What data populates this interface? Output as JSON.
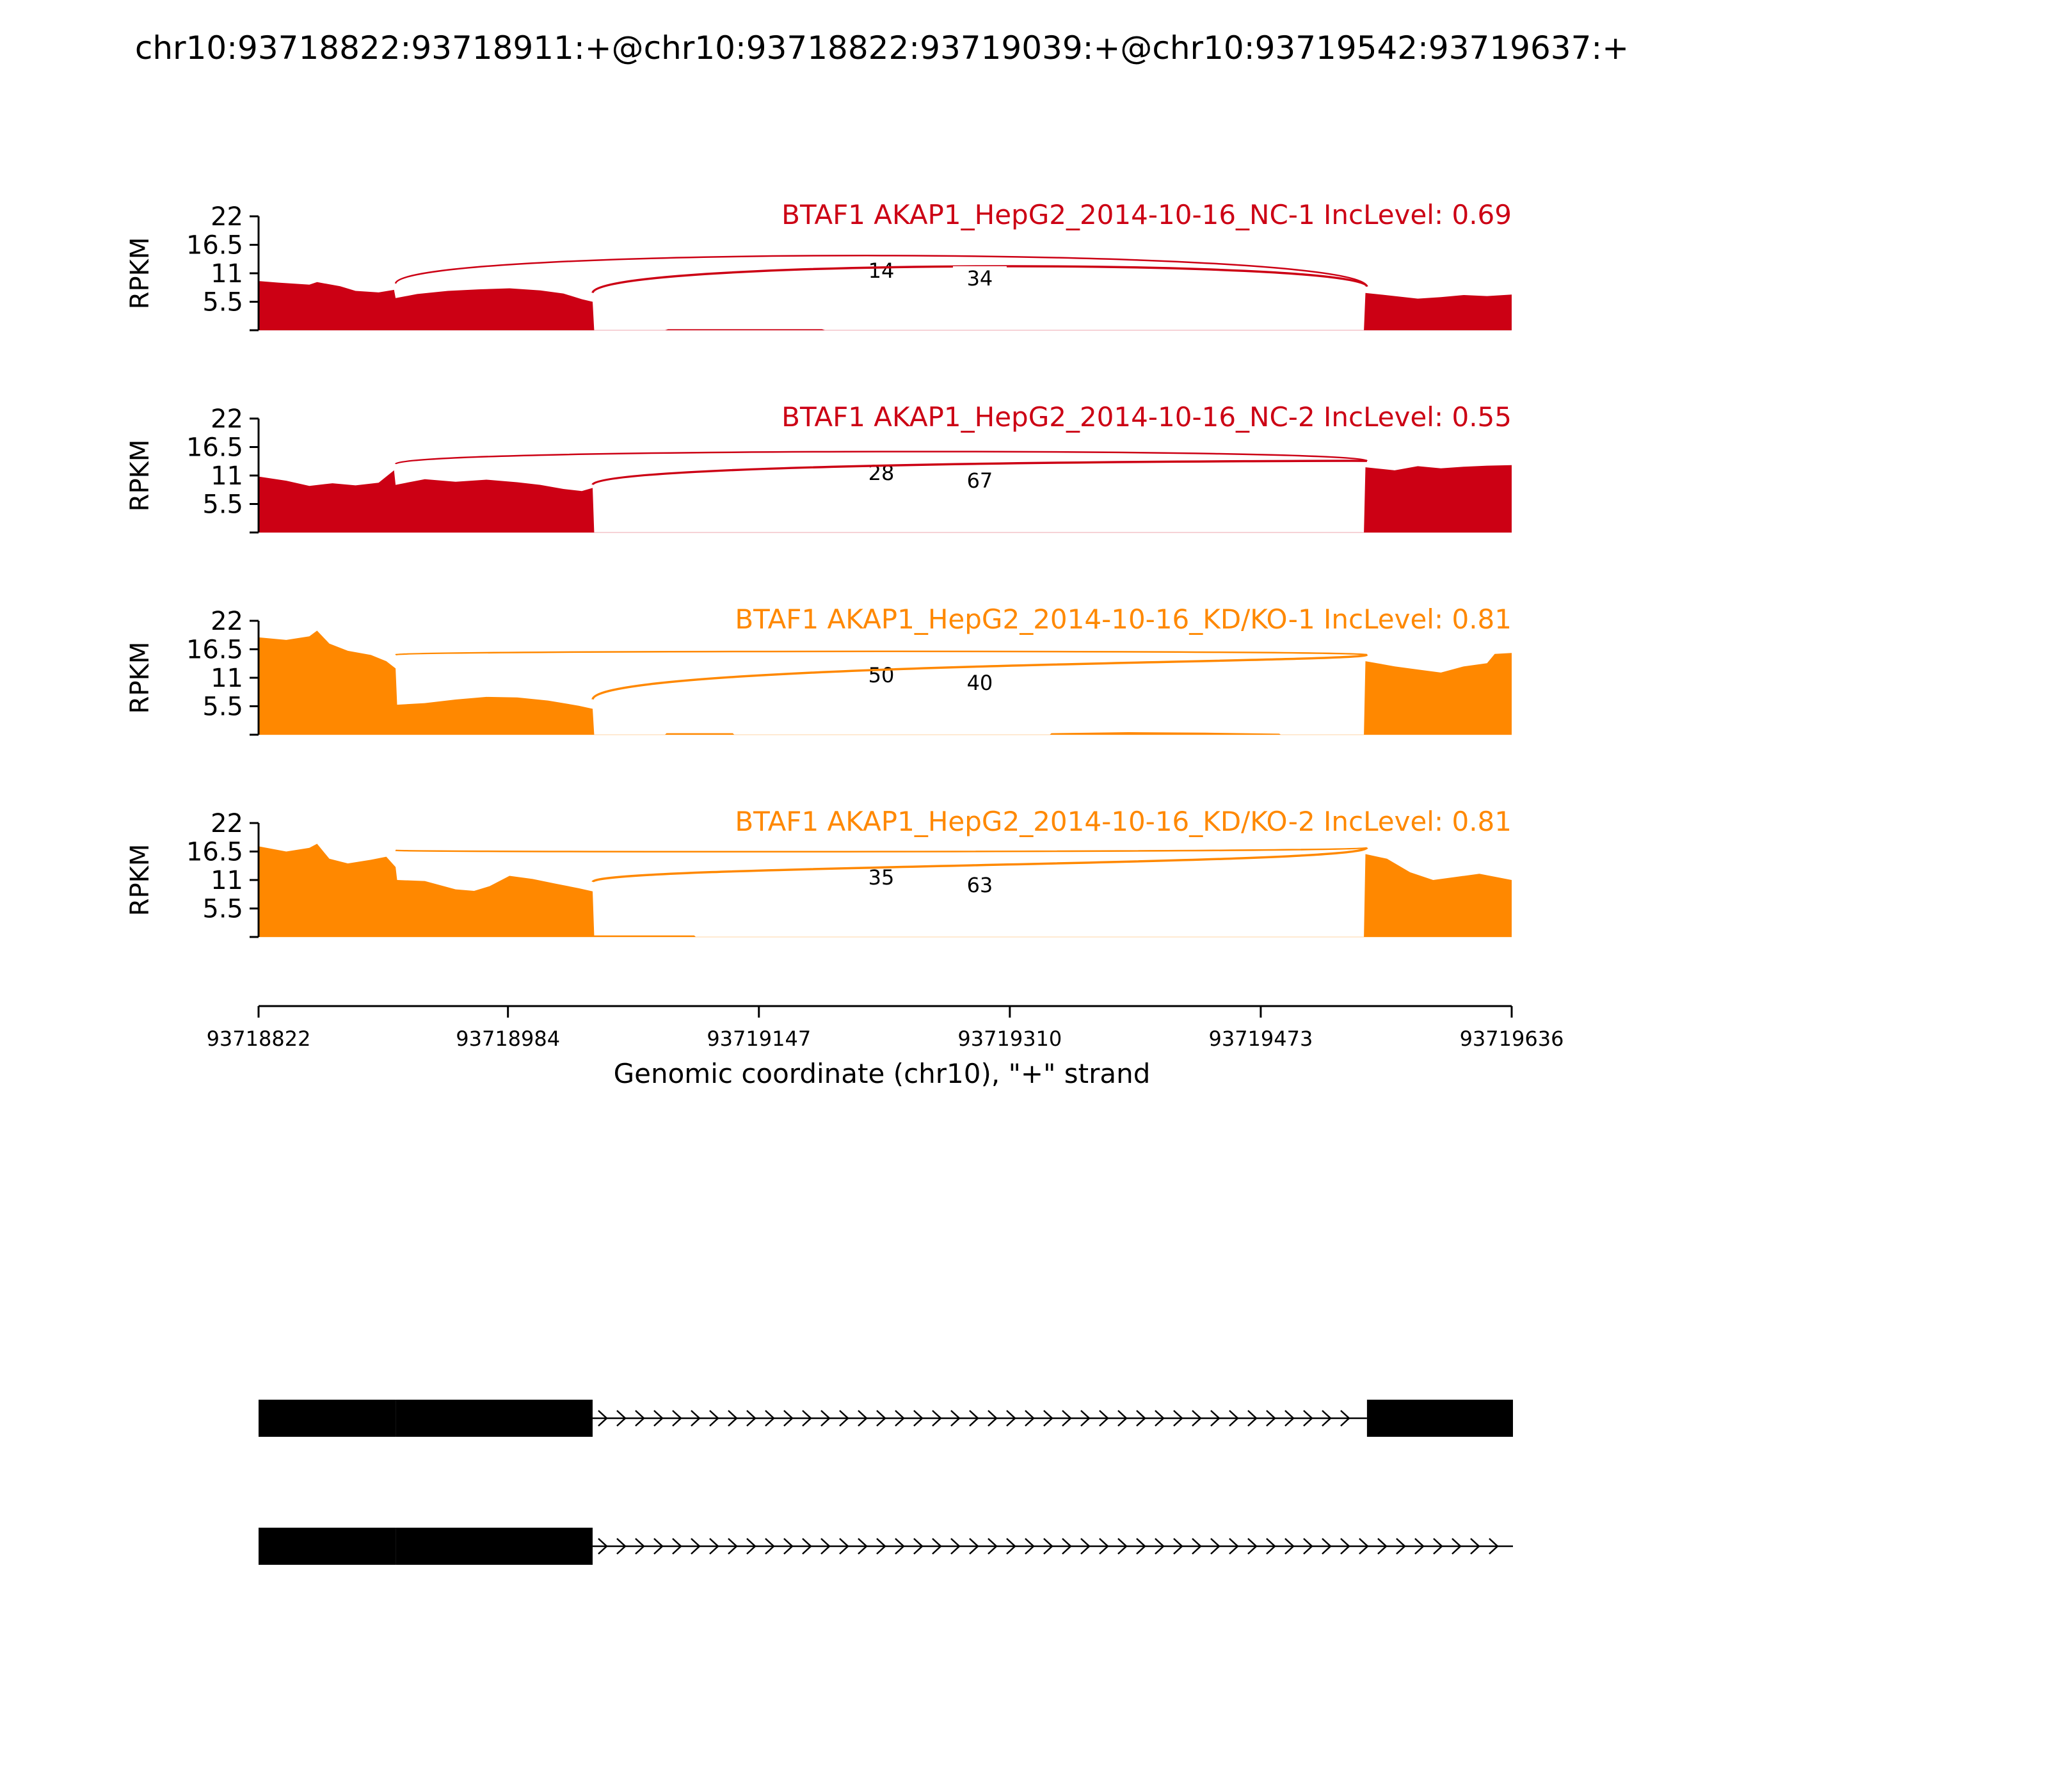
{
  "title": "chr10:93718822:93718911:+@chr10:93718822:93719039:+@chr10:93719542:93719637:+",
  "colors": {
    "nc": "#cc0014",
    "kd": "#ff8800",
    "axis": "#000000",
    "gene": "#000000"
  },
  "chart_data": {
    "type": "area",
    "title": "chr10:93718822:93718911:+@chr10:93718822:93719039:+@chr10:93719542:93719637:+",
    "xlabel": "Genomic coordinate (chr10), \"+\" strand",
    "ylabel": "RPKM",
    "xlim": [
      93718822,
      93719636
    ],
    "x_ticks": [
      "93718822",
      "93718984",
      "93719147",
      "93719310",
      "93719473",
      "93719636"
    ],
    "ylim": [
      0,
      22
    ],
    "y_ticks": [
      "22",
      "16.5",
      "11",
      "5.5"
    ],
    "series": [
      {
        "name": "BTAF1 AKAP1_HepG2_2014-10-16_NC-1 IncLevel: 0.69",
        "group": "nc",
        "coverage": [
          [
            93718822,
            9.5
          ],
          [
            93718835,
            9.2
          ],
          [
            93718855,
            8.8
          ],
          [
            93718860,
            9.3
          ],
          [
            93718875,
            8.5
          ],
          [
            93718885,
            7.6
          ],
          [
            93718900,
            7.3
          ],
          [
            93718910,
            7.8
          ],
          [
            93718911,
            6.2
          ],
          [
            93718925,
            7.0
          ],
          [
            93718945,
            7.6
          ],
          [
            93718965,
            7.9
          ],
          [
            93718985,
            8.1
          ],
          [
            93719005,
            7.7
          ],
          [
            93719020,
            7.1
          ],
          [
            93719032,
            6.0
          ],
          [
            93719039,
            5.5
          ],
          [
            93719040,
            0
          ],
          [
            93719086,
            0
          ],
          [
            93719088,
            0.2
          ],
          [
            93719188,
            0.2
          ],
          [
            93719190,
            0
          ],
          [
            93719540,
            0
          ],
          [
            93719541,
            7.2
          ],
          [
            93719560,
            6.6
          ],
          [
            93719575,
            6.1
          ],
          [
            93719590,
            6.4
          ],
          [
            93719605,
            6.8
          ],
          [
            93719620,
            6.6
          ],
          [
            93719636,
            6.9
          ]
        ],
        "junctions": [
          {
            "from": 93718911,
            "to": 93719542,
            "count": "14"
          },
          {
            "from": 93719039,
            "to": 93719542,
            "count": "34"
          }
        ]
      },
      {
        "name": "BTAF1 AKAP1_HepG2_2014-10-16_NC-2 IncLevel: 0.55",
        "group": "nc",
        "coverage": [
          [
            93718822,
            10.8
          ],
          [
            93718840,
            10.0
          ],
          [
            93718855,
            9.0
          ],
          [
            93718870,
            9.5
          ],
          [
            93718885,
            9.1
          ],
          [
            93718900,
            9.6
          ],
          [
            93718910,
            12.0
          ],
          [
            93718911,
            9.2
          ],
          [
            93718930,
            10.3
          ],
          [
            93718950,
            9.8
          ],
          [
            93718970,
            10.2
          ],
          [
            93718990,
            9.7
          ],
          [
            93719005,
            9.2
          ],
          [
            93719020,
            8.4
          ],
          [
            93719032,
            8.0
          ],
          [
            93719039,
            8.6
          ],
          [
            93719040,
            0
          ],
          [
            93719540,
            0
          ],
          [
            93719541,
            12.6
          ],
          [
            93719560,
            12.0
          ],
          [
            93719575,
            12.8
          ],
          [
            93719590,
            12.4
          ],
          [
            93719605,
            12.7
          ],
          [
            93719620,
            12.9
          ],
          [
            93719636,
            13.0
          ]
        ],
        "junctions": [
          {
            "from": 93718911,
            "to": 93719542,
            "count": "28"
          },
          {
            "from": 93719039,
            "to": 93719542,
            "count": "67"
          }
        ]
      },
      {
        "name": "BTAF1 AKAP1_HepG2_2014-10-16_KD/KO-1 IncLevel: 0.81",
        "group": "kd",
        "coverage": [
          [
            93718822,
            18.8
          ],
          [
            93718840,
            18.3
          ],
          [
            93718855,
            19.0
          ],
          [
            93718860,
            20.1
          ],
          [
            93718868,
            17.6
          ],
          [
            93718880,
            16.2
          ],
          [
            93718895,
            15.4
          ],
          [
            93718905,
            14.2
          ],
          [
            93718911,
            12.8
          ],
          [
            93718912,
            5.8
          ],
          [
            93718930,
            6.1
          ],
          [
            93718950,
            6.8
          ],
          [
            93718970,
            7.3
          ],
          [
            93718990,
            7.2
          ],
          [
            93719010,
            6.6
          ],
          [
            93719030,
            5.6
          ],
          [
            93719039,
            5.0
          ],
          [
            93719040,
            0
          ],
          [
            93719086,
            0
          ],
          [
            93719087,
            0.3
          ],
          [
            93719130,
            0.3
          ],
          [
            93719131,
            0
          ],
          [
            93719336,
            0
          ],
          [
            93719337,
            0.3
          ],
          [
            93719387,
            0.5
          ],
          [
            93719437,
            0.4
          ],
          [
            93719485,
            0.2
          ],
          [
            93719486,
            0
          ],
          [
            93719540,
            0
          ],
          [
            93719541,
            14.2
          ],
          [
            93719560,
            13.2
          ],
          [
            93719575,
            12.6
          ],
          [
            93719590,
            12.0
          ],
          [
            93719605,
            13.2
          ],
          [
            93719620,
            13.8
          ],
          [
            93719625,
            15.6
          ],
          [
            93719636,
            15.8
          ]
        ],
        "junctions": [
          {
            "from": 93718911,
            "to": 93719542,
            "count": "50"
          },
          {
            "from": 93719039,
            "to": 93719542,
            "count": "40"
          }
        ]
      },
      {
        "name": "BTAF1 AKAP1_HepG2_2014-10-16_KD/KO-2 IncLevel: 0.81",
        "group": "kd",
        "coverage": [
          [
            93718822,
            17.5
          ],
          [
            93718840,
            16.5
          ],
          [
            93718855,
            17.2
          ],
          [
            93718860,
            18.0
          ],
          [
            93718868,
            15.1
          ],
          [
            93718880,
            14.2
          ],
          [
            93718895,
            14.9
          ],
          [
            93718905,
            15.5
          ],
          [
            93718911,
            13.5
          ],
          [
            93718912,
            11.0
          ],
          [
            93718930,
            10.8
          ],
          [
            93718950,
            9.2
          ],
          [
            93718962,
            8.9
          ],
          [
            93718972,
            9.8
          ],
          [
            93718985,
            11.8
          ],
          [
            93719000,
            11.2
          ],
          [
            93719015,
            10.3
          ],
          [
            93719030,
            9.4
          ],
          [
            93719039,
            8.8
          ],
          [
            93719040,
            0.3
          ],
          [
            93719105,
            0.3
          ],
          [
            93719106,
            0
          ],
          [
            93719540,
            0
          ],
          [
            93719541,
            16.0
          ],
          [
            93719555,
            15.1
          ],
          [
            93719570,
            12.5
          ],
          [
            93719585,
            11.0
          ],
          [
            93719600,
            11.6
          ],
          [
            93719615,
            12.2
          ],
          [
            93719636,
            11.0
          ]
        ],
        "junctions": [
          {
            "from": 93718911,
            "to": 93719542,
            "count": "35"
          },
          {
            "from": 93719039,
            "to": 93719542,
            "count": "63"
          }
        ]
      }
    ],
    "isoforms": [
      {
        "exons": [
          [
            93718822,
            93718911
          ],
          [
            93718911,
            93719039
          ],
          [
            93719542,
            93719637
          ]
        ],
        "intron": [
          93719039,
          93719542
        ]
      },
      {
        "exons": [
          [
            93718822,
            93718911
          ],
          [
            93718911,
            93719039
          ]
        ],
        "intron": [
          93719039,
          93719637
        ]
      }
    ]
  }
}
